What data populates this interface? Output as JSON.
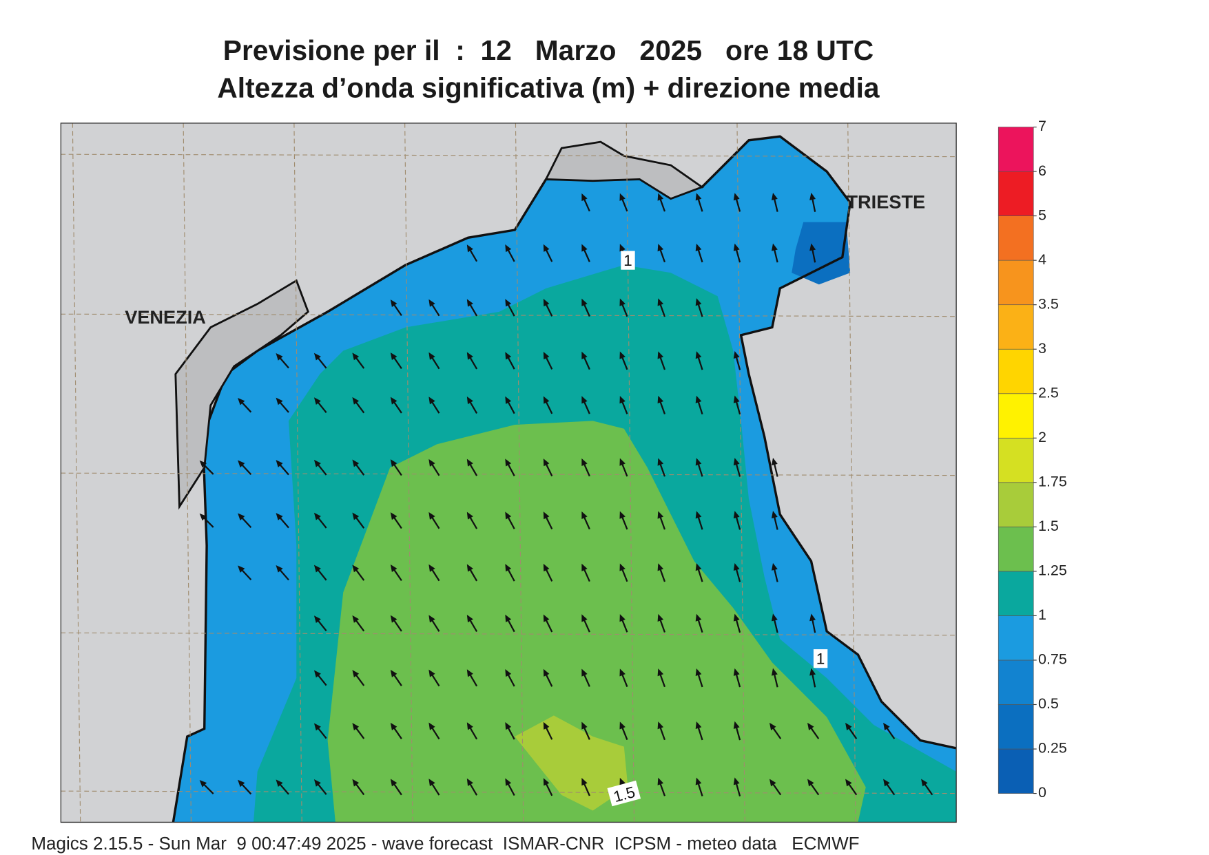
{
  "title": [
    "Previsione per il  :  12   Marzo   2025   ore 18 UTC",
    "Altezza d’onda significativa (m) + direzione media"
  ],
  "map": {
    "places": [
      "VENEZIA",
      "TRIESTE"
    ],
    "contour_labels": [
      "1",
      "1",
      "1.5"
    ]
  },
  "colorbar": {
    "ticks": [
      0,
      0.25,
      0.5,
      0.75,
      1,
      1.25,
      1.5,
      1.75,
      2,
      2.5,
      3,
      3.5,
      4,
      5,
      6,
      7
    ],
    "colors": [
      "#0a5fb4",
      "#0b6fc0",
      "#1283d0",
      "#1b9be0",
      "#0aa89e",
      "#6cbf4e",
      "#a8cc3a",
      "#d5e022",
      "#fff200",
      "#ffd500",
      "#fbb116",
      "#f7941d",
      "#f37021",
      "#ed1c24",
      "#ec145c"
    ]
  },
  "footer": "Magics 2.15.5 - Sun Mar  9 00:47:49 2025 - wave forecast  ISMAR-CNR  ICPSM - meteo data   ECMWF"
}
